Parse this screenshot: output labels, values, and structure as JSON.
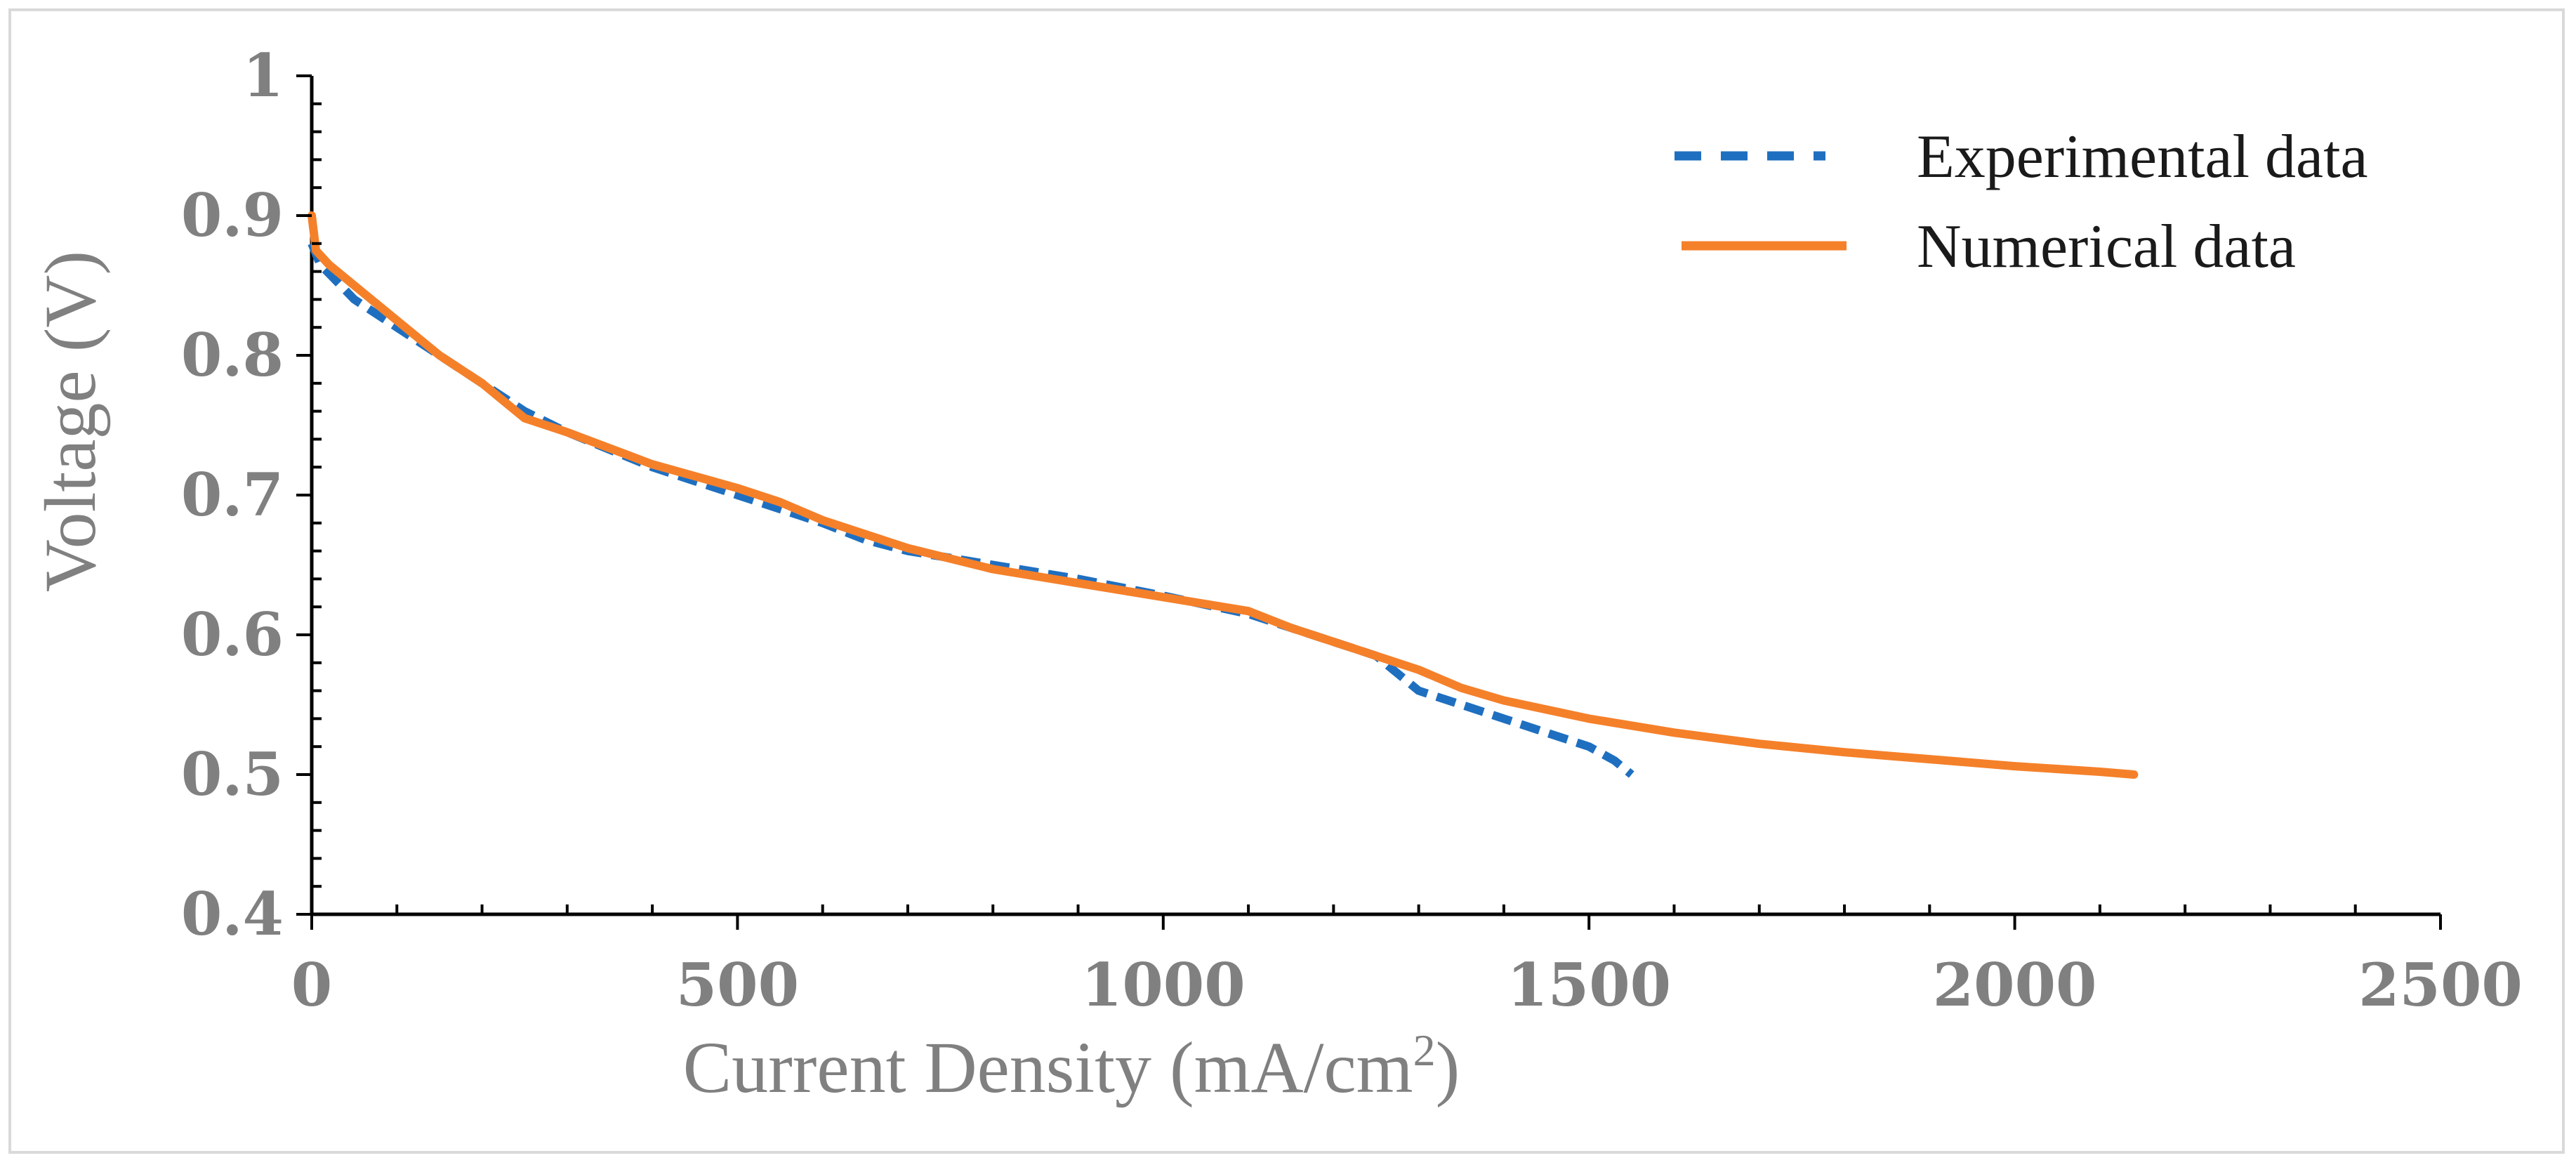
{
  "chart_data": {
    "type": "line",
    "title": "",
    "xlabel": "Current Density (mA/cm",
    "xlabel_superscript": "2",
    "xlabel_suffix": ")",
    "ylabel": "Voltage (V)",
    "xlim": [
      0,
      2500
    ],
    "ylim": [
      0.4,
      1.0
    ],
    "x_ticks": [
      0,
      500,
      1000,
      1500,
      2000,
      2500
    ],
    "x_tick_labels": [
      "0",
      "500",
      "1000",
      "1500",
      "2000",
      "2500"
    ],
    "y_ticks": [
      0.4,
      0.5,
      0.6,
      0.7,
      0.8,
      0.9,
      1.0
    ],
    "y_tick_labels": [
      "0.4",
      "0.5",
      "0.6",
      "0.7",
      "0.8",
      "0.9",
      "1"
    ],
    "grid": false,
    "legend_position": "top-right",
    "series": [
      {
        "name": "Experimental data",
        "color": "#1f6fc0",
        "style": "dashed",
        "x": [
          0,
          10,
          50,
          100,
          150,
          200,
          250,
          300,
          400,
          500,
          550,
          600,
          650,
          700,
          800,
          900,
          1000,
          1100,
          1200,
          1250,
          1300,
          1350,
          1400,
          1450,
          1500,
          1530,
          1550
        ],
        "y": [
          0.88,
          0.865,
          0.84,
          0.82,
          0.8,
          0.78,
          0.76,
          0.745,
          0.72,
          0.7,
          0.69,
          0.68,
          0.668,
          0.66,
          0.65,
          0.64,
          0.628,
          0.615,
          0.595,
          0.585,
          0.56,
          0.55,
          0.54,
          0.53,
          0.52,
          0.51,
          0.5
        ]
      },
      {
        "name": "Numerical data",
        "color": "#f5802a",
        "style": "solid",
        "x": [
          0,
          5,
          20,
          50,
          100,
          150,
          200,
          230,
          250,
          300,
          400,
          500,
          550,
          600,
          700,
          800,
          900,
          1000,
          1100,
          1150,
          1200,
          1250,
          1300,
          1350,
          1400,
          1500,
          1600,
          1700,
          1800,
          1900,
          2000,
          2100,
          2140
        ],
        "y": [
          0.9,
          0.875,
          0.865,
          0.85,
          0.825,
          0.8,
          0.78,
          0.765,
          0.755,
          0.745,
          0.722,
          0.705,
          0.695,
          0.682,
          0.662,
          0.647,
          0.637,
          0.627,
          0.617,
          0.605,
          0.595,
          0.585,
          0.575,
          0.562,
          0.553,
          0.54,
          0.53,
          0.522,
          0.516,
          0.511,
          0.506,
          0.502,
          0.5
        ]
      }
    ]
  }
}
